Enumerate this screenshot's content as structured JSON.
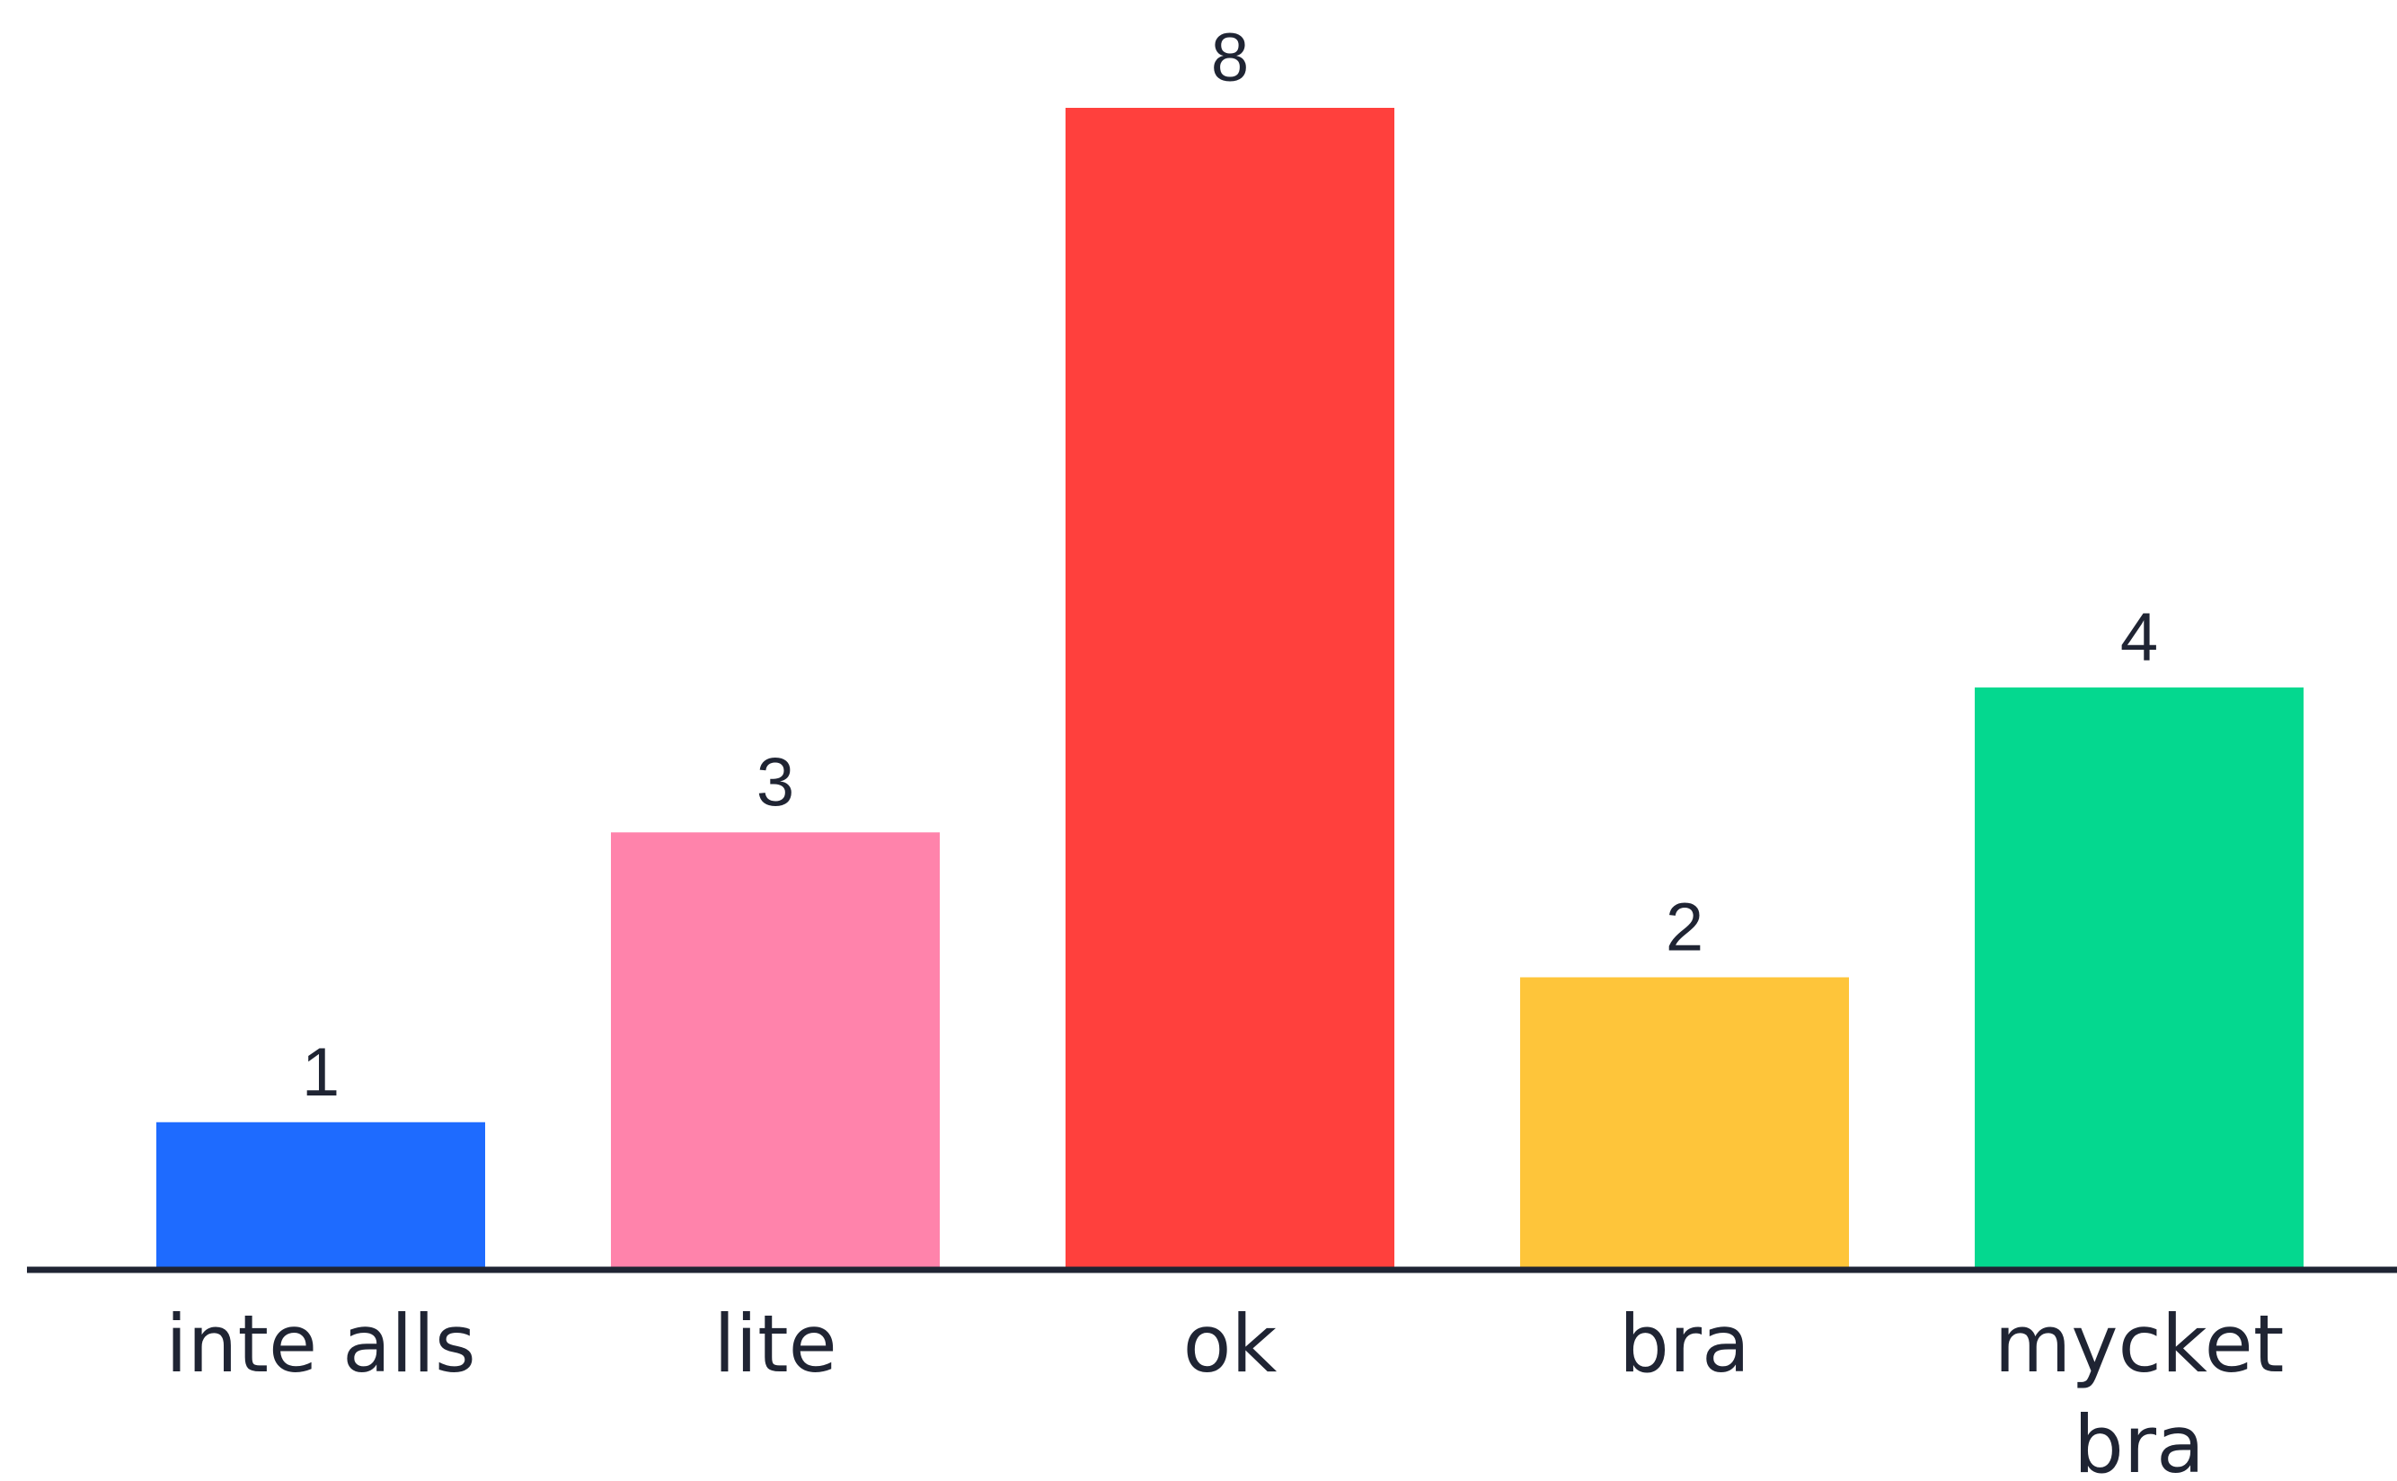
{
  "chart_data": {
    "type": "bar",
    "categories": [
      "inte alls",
      "lite",
      "ok",
      "bra",
      "mycket bra"
    ],
    "category_lines": [
      [
        "inte alls"
      ],
      [
        "lite"
      ],
      [
        "ok"
      ],
      [
        "bra"
      ],
      [
        "mycket",
        "bra"
      ]
    ],
    "values": [
      1,
      3,
      8,
      2,
      4
    ],
    "value_labels": [
      "1",
      "3",
      "8",
      "2",
      "4"
    ],
    "colors": [
      "#1e6bff",
      "#ff83ab",
      "#ff403d",
      "#fec53a",
      "#04d88f"
    ],
    "axis_color": "#1f2433",
    "title": "",
    "xlabel": "",
    "ylabel": "",
    "ylim": [
      0,
      8
    ],
    "grid": false,
    "legend": "none"
  }
}
